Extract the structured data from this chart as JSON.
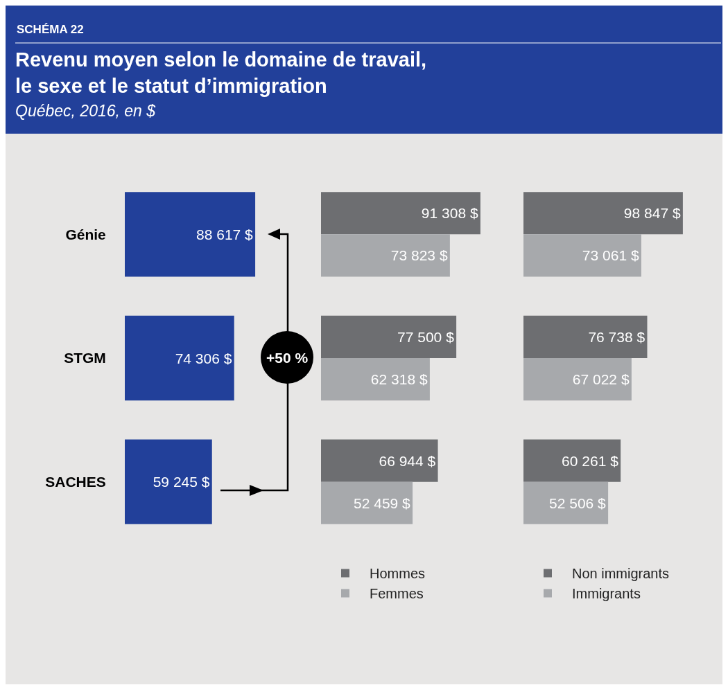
{
  "chart_data": [
    {
      "type": "bar",
      "orientation": "horizontal",
      "title": "Revenu moyen selon le domaine de travail, le sexe et le statut d’immigration",
      "subtitle": "Québec, 2016, en $",
      "annotations": [
        "SCHÉMA 22",
        "+50 %"
      ],
      "categories": [
        "Génie",
        "STGM",
        "SACHES"
      ],
      "values": [
        88617,
        74306,
        59245
      ],
      "value_labels": [
        "88 617 $",
        "74 306 $",
        "59 245 $"
      ],
      "color": "#22409a",
      "tick_labels": "y"
    },
    {
      "type": "bar",
      "orientation": "horizontal",
      "categories": [
        null,
        null,
        null
      ],
      "series": [
        {
          "name": "Hommes",
          "color": "#6d6e71",
          "values": [
            91308,
            77500,
            66944
          ],
          "value_labels": [
            "91 308 $",
            "77 500 $",
            "66 944 $"
          ]
        },
        {
          "name": "Femmes",
          "color": "#a7a9ac",
          "values": [
            73823,
            62318,
            52459
          ],
          "value_labels": [
            "73 823 $",
            "62 318 $",
            "52 459 $"
          ]
        }
      ],
      "tick_labels": false,
      "legend": "bottom"
    },
    {
      "type": "bar",
      "orientation": "horizontal",
      "categories": [
        null,
        null,
        null
      ],
      "series": [
        {
          "name": "Non immigrants",
          "color": "#6d6e71",
          "values": [
            98847,
            76738,
            60261
          ],
          "value_labels": [
            "98 847 $",
            "76 738 $",
            "60 261 $"
          ]
        },
        {
          "name": "Immigrants",
          "color": "#a7a9ac",
          "values": [
            73061,
            67022,
            52506
          ],
          "value_labels": [
            "73 061 $",
            "67 022 $",
            "52 506 $"
          ]
        }
      ],
      "tick_labels": false,
      "legend": "bottom"
    }
  ]
}
